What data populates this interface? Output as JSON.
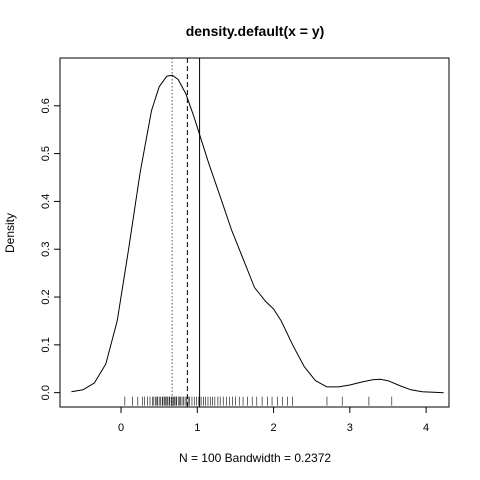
{
  "chart_data": {
    "type": "line",
    "title": "density.default(x = y)",
    "xlabel": "N = 100   Bandwidth = 0.2372",
    "ylabel": "Density",
    "xlim": [
      -0.8,
      4.3
    ],
    "ylim": [
      -0.03,
      0.7
    ],
    "x_ticks": [
      0,
      1,
      2,
      3,
      4
    ],
    "y_ticks": [
      0.0,
      0.1,
      0.2,
      0.3,
      0.4,
      0.5,
      0.6
    ],
    "grid": false,
    "series": [
      {
        "values_x": [
          -0.65,
          -0.5,
          -0.35,
          -0.2,
          -0.05,
          0.1,
          0.25,
          0.4,
          0.5,
          0.6,
          0.67,
          0.75,
          0.85,
          0.95,
          1.05,
          1.15,
          1.3,
          1.45,
          1.6,
          1.75,
          1.9,
          2.0,
          2.1,
          2.25,
          2.4,
          2.55,
          2.7,
          2.85,
          3.0,
          3.15,
          3.3,
          3.4,
          3.5,
          3.65,
          3.8,
          3.95,
          4.1,
          4.23
        ],
        "values_y": [
          0.002,
          0.006,
          0.02,
          0.06,
          0.15,
          0.3,
          0.46,
          0.59,
          0.64,
          0.662,
          0.664,
          0.655,
          0.625,
          0.58,
          0.53,
          0.48,
          0.41,
          0.34,
          0.28,
          0.22,
          0.19,
          0.175,
          0.15,
          0.1,
          0.055,
          0.025,
          0.012,
          0.012,
          0.016,
          0.022,
          0.027,
          0.028,
          0.025,
          0.015,
          0.006,
          0.002,
          0.001,
          0.0
        ]
      }
    ],
    "vlines": [
      {
        "x": 0.67,
        "style": "dotted"
      },
      {
        "x": 0.87,
        "style": "dashed"
      },
      {
        "x": 1.03,
        "style": "solid"
      }
    ],
    "rug": [
      0.05,
      0.15,
      0.22,
      0.28,
      0.31,
      0.35,
      0.38,
      0.41,
      0.43,
      0.45,
      0.47,
      0.48,
      0.5,
      0.52,
      0.54,
      0.55,
      0.57,
      0.58,
      0.6,
      0.61,
      0.63,
      0.64,
      0.66,
      0.67,
      0.69,
      0.7,
      0.72,
      0.73,
      0.75,
      0.77,
      0.78,
      0.8,
      0.82,
      0.84,
      0.86,
      0.88,
      0.9,
      0.93,
      0.96,
      0.99,
      1.02,
      1.05,
      1.08,
      1.11,
      1.14,
      1.17,
      1.2,
      1.23,
      1.27,
      1.3,
      1.34,
      1.38,
      1.42,
      1.46,
      1.5,
      1.55,
      1.6,
      1.66,
      1.72,
      1.78,
      1.85,
      1.92,
      1.98,
      2.05,
      2.12,
      2.18,
      2.25,
      2.7,
      2.9,
      3.25,
      3.55
    ]
  }
}
